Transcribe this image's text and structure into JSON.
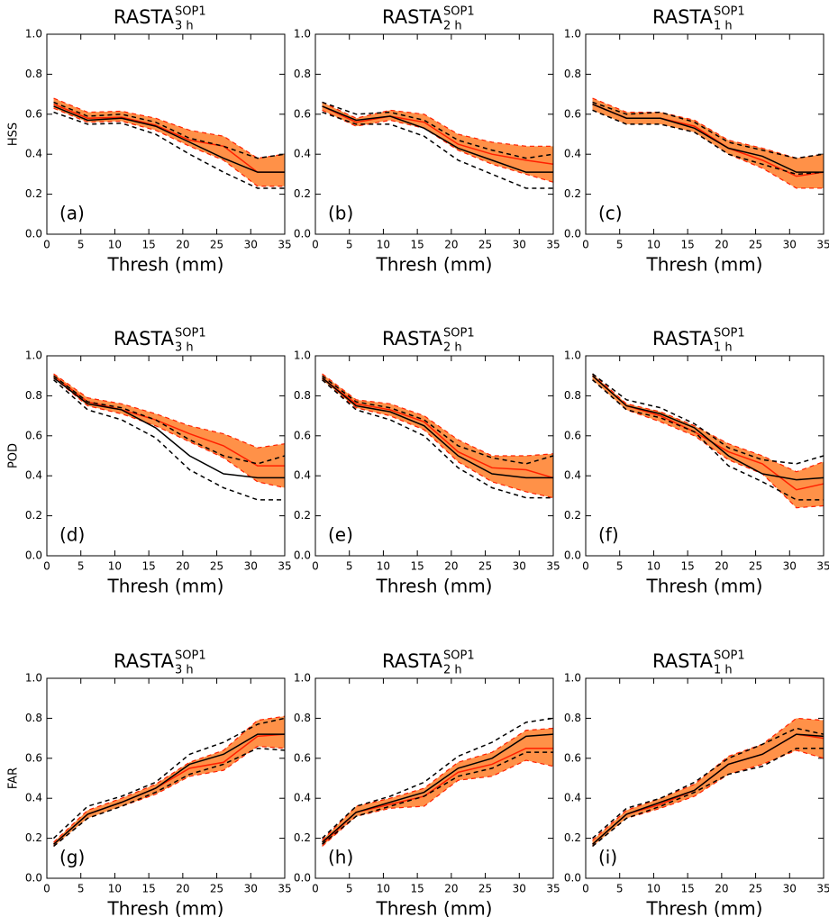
{
  "chart_data": [
    {
      "type": "line",
      "title": "RASTA",
      "title_subscript": "3 h",
      "title_superscript": "SOP1",
      "panel_label": "(a)",
      "ylabel": "HSS",
      "xlabel": "Thresh (mm)",
      "x": [
        1,
        6,
        11,
        16,
        21,
        26,
        31,
        35
      ],
      "xlim": [
        0,
        35
      ],
      "ylim": [
        0,
        1
      ],
      "xticks": [
        0,
        5,
        10,
        15,
        20,
        25,
        30,
        35
      ],
      "yticks": [
        {
          "value": 0,
          "label": "0.0"
        },
        0.2,
        0.4,
        0.6,
        0.8,
        {
          "value": 1,
          "label": "1.0"
        }
      ],
      "band": {
        "color": "#ff9148",
        "edge_color": "#ff2000",
        "lower": [
          0.63,
          0.56,
          0.565,
          0.52,
          0.44,
          0.37,
          0.24,
          0.24
        ],
        "upper": [
          0.68,
          0.61,
          0.615,
          0.58,
          0.52,
          0.49,
          0.38,
          0.4
        ]
      },
      "series": [
        {
          "color": "#ff2000",
          "style": "solid",
          "values": [
            0.65,
            0.58,
            0.585,
            0.545,
            0.47,
            0.44,
            0.31,
            0.31
          ]
        },
        {
          "color": "#000000",
          "style": "solid",
          "values": [
            0.64,
            0.57,
            0.58,
            0.54,
            0.46,
            0.38,
            0.31,
            0.31
          ]
        },
        {
          "color": "#000000",
          "style": "dashed",
          "values": [
            0.66,
            0.59,
            0.6,
            0.56,
            0.48,
            0.44,
            0.38,
            0.4
          ]
        },
        {
          "color": "#000000",
          "style": "dashed",
          "values": [
            0.61,
            0.55,
            0.555,
            0.5,
            0.4,
            0.31,
            0.23,
            0.23
          ]
        }
      ]
    },
    {
      "type": "line",
      "title": "RASTA",
      "title_subscript": "2 h",
      "title_superscript": "SOP1",
      "panel_label": "(b)",
      "xlabel": "Thresh (mm)",
      "x": [
        1,
        6,
        11,
        16,
        21,
        26,
        31,
        35
      ],
      "xlim": [
        0,
        35
      ],
      "ylim": [
        0,
        1
      ],
      "xticks": [
        0,
        5,
        10,
        15,
        20,
        25,
        30,
        35
      ],
      "yticks": [
        {
          "value": 0,
          "label": "0.0"
        },
        0.2,
        0.4,
        0.6,
        0.8,
        {
          "value": 1,
          "label": "1.0"
        }
      ],
      "band": {
        "color": "#ff9148",
        "edge_color": "#ff2000",
        "lower": [
          0.62,
          0.54,
          0.57,
          0.53,
          0.42,
          0.35,
          0.3,
          0.26
        ],
        "upper": [
          0.66,
          0.58,
          0.62,
          0.6,
          0.5,
          0.46,
          0.44,
          0.44
        ]
      },
      "series": [
        {
          "color": "#ff2000",
          "style": "solid",
          "values": [
            0.64,
            0.56,
            0.59,
            0.56,
            0.45,
            0.4,
            0.37,
            0.35
          ]
        },
        {
          "color": "#000000",
          "style": "solid",
          "values": [
            0.64,
            0.57,
            0.59,
            0.53,
            0.43,
            0.37,
            0.31,
            0.31
          ]
        },
        {
          "color": "#000000",
          "style": "dashed",
          "values": [
            0.66,
            0.6,
            0.61,
            0.57,
            0.47,
            0.42,
            0.38,
            0.4
          ]
        },
        {
          "color": "#000000",
          "style": "dashed",
          "values": [
            0.61,
            0.55,
            0.55,
            0.49,
            0.37,
            0.3,
            0.23,
            0.23
          ]
        }
      ]
    },
    {
      "type": "line",
      "title": "RASTA",
      "title_subscript": "1 h",
      "title_superscript": "SOP1",
      "panel_label": "(c)",
      "xlabel": "Thresh (mm)",
      "x": [
        1,
        6,
        11,
        16,
        21,
        26,
        31,
        35
      ],
      "xlim": [
        0,
        35
      ],
      "ylim": [
        0,
        1
      ],
      "xticks": [
        0,
        5,
        10,
        15,
        20,
        25,
        30,
        35
      ],
      "yticks": [
        {
          "value": 0,
          "label": "0.0"
        },
        0.2,
        0.4,
        0.6,
        0.8,
        {
          "value": 1,
          "label": "1.0"
        }
      ],
      "band": {
        "color": "#ff9148",
        "edge_color": "#ff2000",
        "lower": [
          0.62,
          0.55,
          0.55,
          0.51,
          0.4,
          0.33,
          0.23,
          0.23
        ],
        "upper": [
          0.68,
          0.61,
          0.61,
          0.57,
          0.47,
          0.43,
          0.38,
          0.4
        ]
      },
      "series": [
        {
          "color": "#ff2000",
          "style": "solid",
          "values": [
            0.65,
            0.58,
            0.58,
            0.54,
            0.43,
            0.37,
            0.29,
            0.31
          ]
        },
        {
          "color": "#000000",
          "style": "solid",
          "values": [
            0.65,
            0.58,
            0.58,
            0.53,
            0.43,
            0.39,
            0.31,
            0.31
          ]
        },
        {
          "color": "#000000",
          "style": "dashed",
          "values": [
            0.66,
            0.6,
            0.61,
            0.56,
            0.46,
            0.42,
            0.38,
            0.4
          ]
        },
        {
          "color": "#000000",
          "style": "dashed",
          "values": [
            0.62,
            0.55,
            0.55,
            0.51,
            0.4,
            0.35,
            0.3,
            0.31
          ]
        }
      ]
    },
    {
      "type": "line",
      "title": "RASTA",
      "title_subscript": "3 h",
      "title_superscript": "SOP1",
      "panel_label": "(d)",
      "ylabel": "POD",
      "xlabel": "Thresh (mm)",
      "x": [
        1,
        6,
        11,
        16,
        21,
        26,
        31,
        35
      ],
      "xlim": [
        0,
        35
      ],
      "ylim": [
        0,
        1
      ],
      "xticks": [
        0,
        5,
        10,
        15,
        20,
        25,
        30,
        35
      ],
      "yticks": [
        {
          "value": 0,
          "label": "0.0"
        },
        0.2,
        0.4,
        0.6,
        0.8,
        {
          "value": 1,
          "label": "1.0"
        }
      ],
      "band": {
        "color": "#ff9148",
        "edge_color": "#ff2000",
        "lower": [
          0.89,
          0.75,
          0.71,
          0.65,
          0.57,
          0.49,
          0.37,
          0.34
        ],
        "upper": [
          0.91,
          0.79,
          0.76,
          0.71,
          0.65,
          0.61,
          0.54,
          0.56
        ]
      },
      "series": [
        {
          "color": "#ff2000",
          "style": "solid",
          "values": [
            0.9,
            0.77,
            0.73,
            0.68,
            0.61,
            0.55,
            0.45,
            0.45
          ]
        },
        {
          "color": "#000000",
          "style": "solid",
          "values": [
            0.89,
            0.76,
            0.73,
            0.64,
            0.5,
            0.41,
            0.39,
            0.39
          ]
        },
        {
          "color": "#000000",
          "style": "dashed",
          "values": [
            0.9,
            0.77,
            0.74,
            0.68,
            0.58,
            0.5,
            0.46,
            0.5
          ]
        },
        {
          "color": "#000000",
          "style": "dashed",
          "values": [
            0.88,
            0.73,
            0.68,
            0.59,
            0.43,
            0.34,
            0.28,
            0.28
          ]
        }
      ]
    },
    {
      "type": "line",
      "title": "RASTA",
      "title_subscript": "2 h",
      "title_superscript": "SOP1",
      "panel_label": "(e)",
      "xlabel": "Thresh (mm)",
      "x": [
        1,
        6,
        11,
        16,
        21,
        26,
        31,
        35
      ],
      "xlim": [
        0,
        35
      ],
      "ylim": [
        0,
        1
      ],
      "xticks": [
        0,
        5,
        10,
        15,
        20,
        25,
        30,
        35
      ],
      "yticks": [
        {
          "value": 0,
          "label": "0.0"
        },
        0.2,
        0.4,
        0.6,
        0.8,
        {
          "value": 1,
          "label": "1.0"
        }
      ],
      "band": {
        "color": "#ff9148",
        "edge_color": "#ff2000",
        "lower": [
          0.88,
          0.74,
          0.7,
          0.63,
          0.47,
          0.37,
          0.32,
          0.29
        ],
        "upper": [
          0.91,
          0.78,
          0.76,
          0.7,
          0.58,
          0.5,
          0.5,
          0.51
        ]
      },
      "series": [
        {
          "color": "#ff2000",
          "style": "solid",
          "values": [
            0.89,
            0.76,
            0.73,
            0.67,
            0.52,
            0.44,
            0.43,
            0.39
          ]
        },
        {
          "color": "#000000",
          "style": "solid",
          "values": [
            0.89,
            0.75,
            0.72,
            0.65,
            0.5,
            0.41,
            0.39,
            0.39
          ]
        },
        {
          "color": "#000000",
          "style": "dashed",
          "values": [
            0.9,
            0.77,
            0.74,
            0.68,
            0.55,
            0.49,
            0.46,
            0.5
          ]
        },
        {
          "color": "#000000",
          "style": "dashed",
          "values": [
            0.88,
            0.73,
            0.68,
            0.6,
            0.44,
            0.34,
            0.29,
            0.29
          ]
        }
      ]
    },
    {
      "type": "line",
      "title": "RASTA",
      "title_subscript": "1 h",
      "title_superscript": "SOP1",
      "panel_label": "(f)",
      "xlabel": "Thresh (mm)",
      "x": [
        1,
        6,
        11,
        16,
        21,
        26,
        31,
        35
      ],
      "xlim": [
        0,
        35
      ],
      "ylim": [
        0,
        1
      ],
      "xticks": [
        0,
        5,
        10,
        15,
        20,
        25,
        30,
        35
      ],
      "yticks": [
        {
          "value": 0,
          "label": "0.0"
        },
        0.2,
        0.4,
        0.6,
        0.8,
        {
          "value": 1,
          "label": "1.0"
        }
      ],
      "band": {
        "color": "#ff9148",
        "edge_color": "#ff2000",
        "lower": [
          0.88,
          0.73,
          0.67,
          0.6,
          0.48,
          0.41,
          0.24,
          0.25
        ],
        "upper": [
          0.91,
          0.76,
          0.72,
          0.65,
          0.56,
          0.5,
          0.42,
          0.47
        ]
      },
      "series": [
        {
          "color": "#ff2000",
          "style": "solid",
          "values": [
            0.9,
            0.75,
            0.7,
            0.62,
            0.52,
            0.46,
            0.33,
            0.36
          ]
        },
        {
          "color": "#000000",
          "style": "solid",
          "values": [
            0.9,
            0.75,
            0.71,
            0.64,
            0.5,
            0.41,
            0.38,
            0.39
          ]
        },
        {
          "color": "#000000",
          "style": "dashed",
          "values": [
            0.91,
            0.78,
            0.74,
            0.66,
            0.54,
            0.48,
            0.46,
            0.5
          ]
        },
        {
          "color": "#000000",
          "style": "dashed",
          "values": [
            0.88,
            0.73,
            0.69,
            0.62,
            0.45,
            0.37,
            0.28,
            0.28
          ]
        }
      ]
    },
    {
      "type": "line",
      "title": "RASTA",
      "title_subscript": "3 h",
      "title_superscript": "SOP1",
      "panel_label": "(g)",
      "ylabel": "FAR",
      "xlabel": "Thresh (mm)",
      "x": [
        1,
        6,
        11,
        16,
        21,
        26,
        31,
        35
      ],
      "xlim": [
        0,
        35
      ],
      "ylim": [
        0,
        1
      ],
      "xticks": [
        0,
        5,
        10,
        15,
        20,
        25,
        30,
        35
      ],
      "yticks": [
        {
          "value": 0,
          "label": "0.0"
        },
        0.2,
        0.4,
        0.6,
        0.8,
        {
          "value": 1,
          "label": "1.0"
        }
      ],
      "band": {
        "color": "#ff9148",
        "edge_color": "#ff2000",
        "lower": [
          0.16,
          0.3,
          0.36,
          0.42,
          0.51,
          0.54,
          0.66,
          0.65
        ],
        "upper": [
          0.18,
          0.34,
          0.4,
          0.47,
          0.58,
          0.64,
          0.79,
          0.81
        ]
      },
      "series": [
        {
          "color": "#ff2000",
          "style": "solid",
          "values": [
            0.17,
            0.32,
            0.38,
            0.45,
            0.55,
            0.58,
            0.71,
            0.72
          ]
        },
        {
          "color": "#000000",
          "style": "solid",
          "values": [
            0.17,
            0.32,
            0.38,
            0.45,
            0.57,
            0.62,
            0.72,
            0.72
          ]
        },
        {
          "color": "#000000",
          "style": "dashed",
          "values": [
            0.2,
            0.36,
            0.41,
            0.48,
            0.62,
            0.68,
            0.77,
            0.8
          ]
        },
        {
          "color": "#000000",
          "style": "dashed",
          "values": [
            0.16,
            0.3,
            0.36,
            0.43,
            0.52,
            0.57,
            0.65,
            0.64
          ]
        }
      ]
    },
    {
      "type": "line",
      "title": "RASTA",
      "title_subscript": "2 h",
      "title_superscript": "SOP1",
      "panel_label": "(h)",
      "xlabel": "Thresh (mm)",
      "x": [
        1,
        6,
        11,
        16,
        21,
        26,
        31,
        35
      ],
      "xlim": [
        0,
        35
      ],
      "ylim": [
        0,
        1
      ],
      "xticks": [
        0,
        5,
        10,
        15,
        20,
        25,
        30,
        35
      ],
      "yticks": [
        {
          "value": 0,
          "label": "0.0"
        },
        0.2,
        0.4,
        0.6,
        0.8,
        {
          "value": 1,
          "label": "1.0"
        }
      ],
      "band": {
        "color": "#ff9148",
        "edge_color": "#ff2000",
        "lower": [
          0.16,
          0.31,
          0.35,
          0.36,
          0.49,
          0.51,
          0.59,
          0.56
        ],
        "upper": [
          0.19,
          0.36,
          0.4,
          0.45,
          0.58,
          0.63,
          0.74,
          0.75
        ]
      },
      "series": [
        {
          "color": "#ff2000",
          "style": "solid",
          "values": [
            0.17,
            0.33,
            0.37,
            0.41,
            0.53,
            0.57,
            0.65,
            0.65
          ]
        },
        {
          "color": "#000000",
          "style": "solid",
          "values": [
            0.18,
            0.33,
            0.38,
            0.43,
            0.55,
            0.6,
            0.71,
            0.72
          ]
        },
        {
          "color": "#000000",
          "style": "dashed",
          "values": [
            0.2,
            0.36,
            0.41,
            0.48,
            0.61,
            0.68,
            0.78,
            0.8
          ]
        },
        {
          "color": "#000000",
          "style": "dashed",
          "values": [
            0.17,
            0.31,
            0.36,
            0.41,
            0.51,
            0.55,
            0.63,
            0.63
          ]
        }
      ]
    },
    {
      "type": "line",
      "title": "RASTA",
      "title_subscript": "1 h",
      "title_superscript": "SOP1",
      "panel_label": "(i)",
      "xlabel": "Thresh (mm)",
      "x": [
        1,
        6,
        11,
        16,
        21,
        26,
        31,
        35
      ],
      "xlim": [
        0,
        35
      ],
      "ylim": [
        0,
        1
      ],
      "xticks": [
        0,
        5,
        10,
        15,
        20,
        25,
        30,
        35
      ],
      "yticks": [
        {
          "value": 0,
          "label": "0.0"
        },
        0.2,
        0.4,
        0.6,
        0.8,
        {
          "value": 1,
          "label": "1.0"
        }
      ],
      "band": {
        "color": "#ff9148",
        "edge_color": "#ff2000",
        "lower": [
          0.16,
          0.3,
          0.35,
          0.41,
          0.52,
          0.57,
          0.64,
          0.6
        ],
        "upper": [
          0.19,
          0.34,
          0.4,
          0.47,
          0.61,
          0.67,
          0.8,
          0.79
        ]
      },
      "series": [
        {
          "color": "#ff2000",
          "style": "solid",
          "values": [
            0.17,
            0.32,
            0.37,
            0.44,
            0.57,
            0.62,
            0.72,
            0.7
          ]
        },
        {
          "color": "#000000",
          "style": "solid",
          "values": [
            0.17,
            0.32,
            0.38,
            0.44,
            0.57,
            0.62,
            0.72,
            0.71
          ]
        },
        {
          "color": "#000000",
          "style": "dashed",
          "values": [
            0.2,
            0.35,
            0.4,
            0.48,
            0.6,
            0.67,
            0.75,
            0.72
          ]
        },
        {
          "color": "#000000",
          "style": "dashed",
          "values": [
            0.16,
            0.3,
            0.36,
            0.43,
            0.52,
            0.56,
            0.65,
            0.65
          ]
        }
      ]
    }
  ]
}
